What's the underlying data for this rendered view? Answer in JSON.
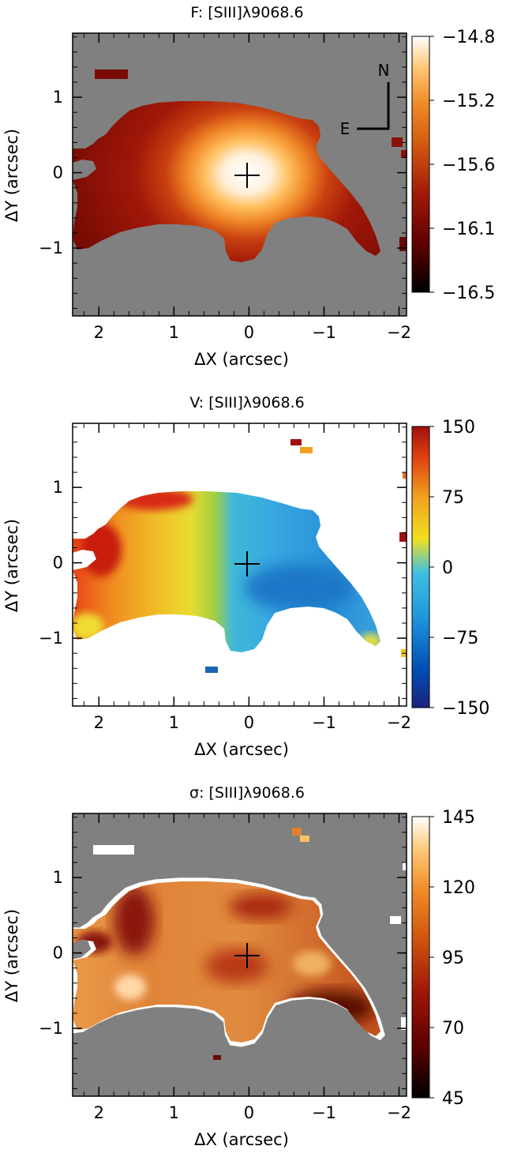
{
  "chart_data": [
    {
      "type": "heatmap",
      "title": "F: [SIII]λ9068.6",
      "xlabel": "ΔX (arcsec)",
      "ylabel": "ΔY (arcsec)",
      "xlim": [
        2.35,
        -2.1
      ],
      "ylim": [
        -1.9,
        1.85
      ],
      "xticks": [
        2,
        1,
        0,
        -1,
        -2
      ],
      "yticks": [
        1,
        0,
        -1
      ],
      "xtick_labels": [
        "2",
        "1",
        "0",
        "−1",
        "−2"
      ],
      "ytick_labels": [
        "1",
        "0",
        "−1"
      ],
      "colorbar": {
        "range": [
          -16.5,
          -14.8
        ],
        "ticks": [
          -14.8,
          -15.2,
          -15.6,
          -16.1,
          -16.5
        ],
        "tick_labels": [
          "−14.8",
          "−15.2",
          "−15.6",
          "−16.1",
          "−16.5"
        ],
        "colors": [
          "#000000",
          "#5a0000",
          "#a01808",
          "#d25a10",
          "#f08c28",
          "#ffc878",
          "#ffffff"
        ]
      },
      "background": "#808080",
      "map_peak": {
        "x": 0.0,
        "y": 0.0,
        "max": -14.8,
        "min": -16.5
      },
      "marker": {
        "symbol": "+",
        "x": 0.0,
        "y": 0.0
      },
      "compass": {
        "north": "N",
        "east": "E"
      }
    },
    {
      "type": "heatmap",
      "title": "V: [SIII]λ9068.6",
      "xlabel": "ΔX (arcsec)",
      "ylabel": "ΔY (arcsec)",
      "xlim": [
        2.35,
        -2.1
      ],
      "ylim": [
        -1.9,
        1.85
      ],
      "xticks": [
        2,
        1,
        0,
        -1,
        -2
      ],
      "yticks": [
        1,
        0,
        -1
      ],
      "xtick_labels": [
        "2",
        "1",
        "0",
        "−1",
        "−2"
      ],
      "ytick_labels": [
        "1",
        "0",
        "−1"
      ],
      "colorbar": {
        "range": [
          -150,
          150
        ],
        "ticks": [
          150,
          75,
          0,
          -75,
          -150
        ],
        "tick_labels": [
          "150",
          "75",
          "0",
          "−75",
          "−150"
        ],
        "colors": [
          "#1a237e",
          "#0050b4",
          "#1e96dc",
          "#40c0e0",
          "#f0e020",
          "#f0a020",
          "#e04010",
          "#a01010"
        ]
      },
      "background": "#ffffff",
      "velocity_field": {
        "east_side": 100,
        "west_side": -40
      },
      "marker": {
        "symbol": "+",
        "x": 0.0,
        "y": 0.0
      }
    },
    {
      "type": "heatmap",
      "title": "σ: [SIII]λ9068.6",
      "xlabel": "ΔX (arcsec)",
      "ylabel": "ΔY (arcsec)",
      "xlim": [
        2.35,
        -2.1
      ],
      "ylim": [
        -1.9,
        1.85
      ],
      "xticks": [
        2,
        1,
        0,
        -1,
        -2
      ],
      "yticks": [
        1,
        0,
        -1
      ],
      "xtick_labels": [
        "2",
        "1",
        "0",
        "−1",
        "−2"
      ],
      "ytick_labels": [
        "1",
        "0",
        "−1"
      ],
      "colorbar": {
        "range": [
          45,
          145
        ],
        "ticks": [
          145,
          120,
          95,
          70,
          45
        ],
        "tick_labels": [
          "145",
          "120",
          "95",
          "70",
          "45"
        ],
        "colors": [
          "#000000",
          "#5a0000",
          "#a01808",
          "#d25a10",
          "#f08c28",
          "#ffc878",
          "#ffffff"
        ]
      },
      "background": "#808080",
      "dispersion_field": {
        "typical": 112,
        "min": 70,
        "max": 145
      },
      "marker": {
        "symbol": "+",
        "x": 0.0,
        "y": 0.0
      }
    }
  ]
}
